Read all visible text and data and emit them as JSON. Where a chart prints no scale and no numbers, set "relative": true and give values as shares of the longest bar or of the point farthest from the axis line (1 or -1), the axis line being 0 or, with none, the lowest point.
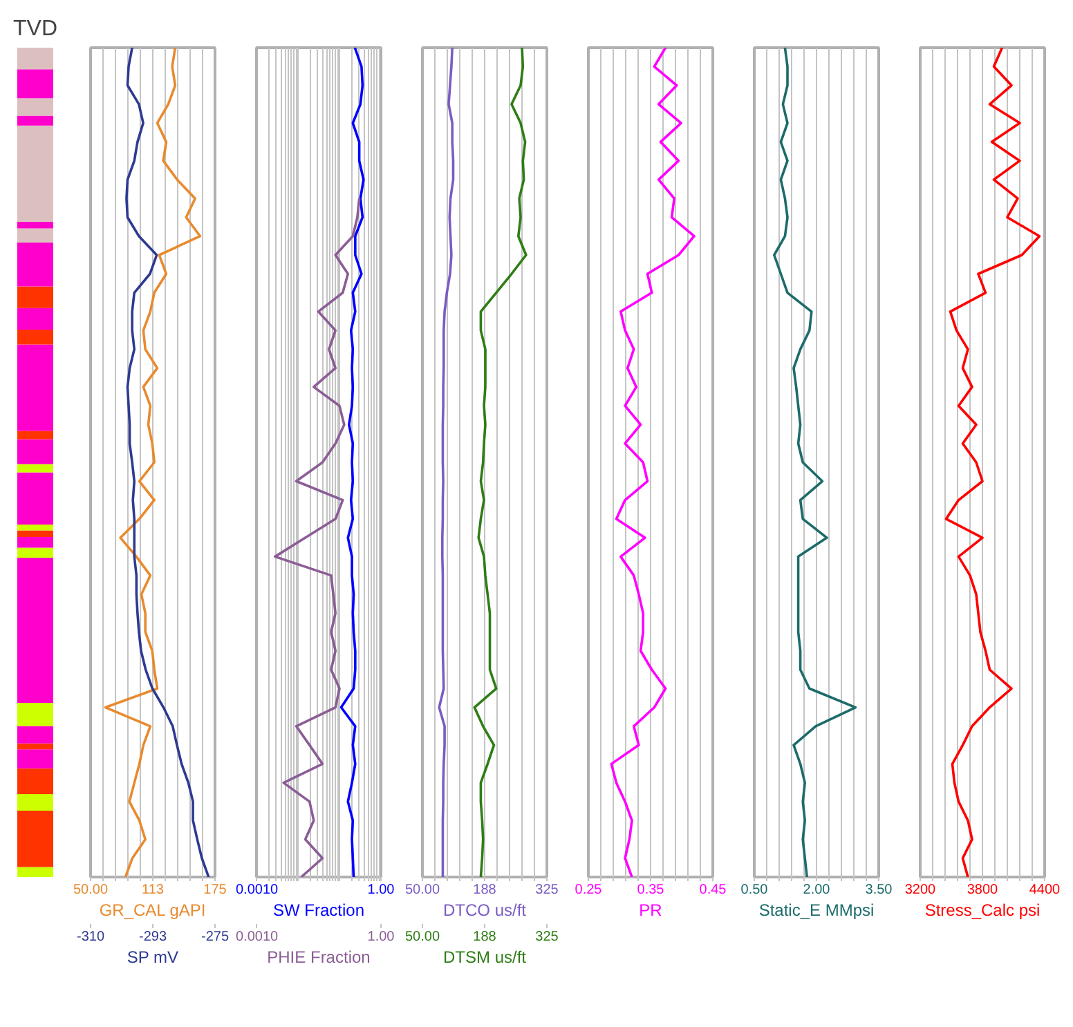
{
  "chart_data": [
    {
      "type": "bar",
      "title": "TVD",
      "stacked": true,
      "relative": true,
      "categories": [
        null
      ],
      "series": [
        {
          "color": "#ccff00",
          "values": [
            0.012
          ]
        },
        {
          "color": "#ff3300",
          "values": [
            0.068
          ]
        },
        {
          "color": "#ccff00",
          "values": [
            0.02
          ]
        },
        {
          "color": "#ff3300",
          "values": [
            0.031
          ]
        },
        {
          "color": "#ff00cc",
          "values": [
            0.023
          ]
        },
        {
          "color": "#ff3300",
          "values": [
            0.007
          ]
        },
        {
          "color": "#ff00cc",
          "values": [
            0.021
          ]
        },
        {
          "color": "#ccff00",
          "values": [
            0.028
          ]
        },
        {
          "color": "#ff00cc",
          "values": [
            0.175
          ]
        },
        {
          "color": "#ccff00",
          "values": [
            0.012
          ]
        },
        {
          "color": "#ff00cc",
          "values": [
            0.013
          ]
        },
        {
          "color": "#ff3300",
          "values": [
            0.008
          ]
        },
        {
          "color": "#ccff00",
          "values": [
            0.007
          ]
        },
        {
          "color": "#ff00cc",
          "values": [
            0.063
          ]
        },
        {
          "color": "#ccff00",
          "values": [
            0.01
          ]
        },
        {
          "color": "#ff00cc",
          "values": [
            0.03
          ]
        },
        {
          "color": "#ff3300",
          "values": [
            0.01
          ]
        },
        {
          "color": "#ff00cc",
          "values": [
            0.104
          ]
        },
        {
          "color": "#ff3300",
          "values": [
            0.018
          ]
        },
        {
          "color": "#ff00cc",
          "values": [
            0.026
          ]
        },
        {
          "color": "#ff3300",
          "values": [
            0.026
          ]
        },
        {
          "color": "#ff00cc",
          "values": [
            0.053
          ]
        },
        {
          "color": "#dcc0c0",
          "values": [
            0.017
          ]
        },
        {
          "color": "#ff00cc",
          "values": [
            0.008
          ]
        },
        {
          "color": "#dcc0c0",
          "values": [
            0.116
          ]
        },
        {
          "color": "#ff00cc",
          "values": [
            0.012
          ]
        },
        {
          "color": "#dcc0c0",
          "values": [
            0.021
          ]
        },
        {
          "color": "#ff00cc",
          "values": [
            0.035
          ]
        },
        {
          "color": "#dcc0c0",
          "values": [
            0.026
          ]
        }
      ]
    },
    {
      "type": "line",
      "orientation": "horizontal",
      "grid": "x",
      "tick_labels": "x",
      "xlabel": "GR_CAL gAPI",
      "x2label": "SP mV",
      "categories": [
        null,
        null,
        null,
        null,
        null,
        null,
        null,
        null,
        null,
        null,
        null,
        null,
        null,
        null,
        null,
        null,
        null,
        null,
        null,
        null,
        null,
        null,
        null,
        null,
        null,
        null,
        null,
        null,
        null,
        null,
        null,
        null,
        null,
        null,
        null,
        null,
        null,
        null,
        null,
        null,
        null,
        null,
        null,
        null,
        null
      ],
      "xlim": [
        50,
        175
      ],
      "xticks": [
        {
          "value": 50,
          "label": "50.00"
        },
        {
          "value": 62.5,
          "label": null
        },
        {
          "value": 75,
          "label": null
        },
        {
          "value": 87.5,
          "label": null
        },
        {
          "value": 100,
          "label": null
        },
        {
          "value": 112.5,
          "label": "113"
        },
        {
          "value": 125,
          "label": null
        },
        {
          "value": 137.5,
          "label": null
        },
        {
          "value": 150,
          "label": null
        },
        {
          "value": 162.5,
          "label": null
        },
        175
      ],
      "x2lim": [
        -310,
        -275
      ],
      "x2ticks": [
        -310,
        {
          "value": -292.5,
          "label": "-293"
        },
        -275
      ],
      "series": [
        {
          "color": "#e88a2e",
          "values": [
            135,
            132,
            135,
            128,
            117,
            126,
            123,
            137,
            155,
            146,
            160,
            119,
            126,
            114,
            110,
            103,
            105,
            117,
            103,
            110,
            108,
            112,
            114,
            99,
            114,
            99,
            80,
            96,
            110,
            101,
            105,
            105,
            112,
            114,
            117,
            65,
            110,
            103,
            99,
            94,
            89,
            99,
            105,
            92,
            85
          ]
        },
        {
          "color": "#2e3a92",
          "axis": "x2",
          "values": [
            -298.3,
            -299.3,
            -299.6,
            -296.4,
            -295.2,
            -296.8,
            -297.7,
            -299.6,
            -299.9,
            -299.6,
            -296.4,
            -291.4,
            -293.3,
            -297.7,
            -298.3,
            -298.3,
            -297.7,
            -299.0,
            -299.6,
            -299.3,
            -299.0,
            -299.0,
            -298.3,
            -297.7,
            -298.1,
            -297.7,
            -297.7,
            -297.7,
            -297.1,
            -297.1,
            -296.8,
            -296.4,
            -295.8,
            -294.5,
            -292.6,
            -289.5,
            -286.9,
            -285.7,
            -284.4,
            -282.5,
            -281.2,
            -281.2,
            -280.0,
            -278.7,
            -276.8
          ]
        }
      ]
    },
    {
      "type": "line",
      "orientation": "horizontal",
      "grid": "x",
      "tick_labels": "x",
      "log": "x",
      "xlabel": "SW Fraction",
      "x2label": "PHIE Fraction",
      "categories": [
        null,
        null,
        null,
        null,
        null,
        null,
        null,
        null,
        null,
        null,
        null,
        null,
        null,
        null,
        null,
        null,
        null,
        null,
        null,
        null,
        null,
        null,
        null,
        null,
        null,
        null,
        null,
        null,
        null,
        null,
        null,
        null,
        null,
        null,
        null,
        null,
        null,
        null,
        null,
        null,
        null,
        null,
        null,
        null,
        null
      ],
      "xlim": [
        0.001,
        1
      ],
      "xticks": [
        {
          "value": 0.001,
          "label": "0.0010"
        },
        {
          "value": 0.002,
          "label": null
        },
        {
          "value": 0.003,
          "label": null
        },
        {
          "value": 0.004,
          "label": null
        },
        {
          "value": 0.005,
          "label": null
        },
        {
          "value": 0.006,
          "label": null
        },
        {
          "value": 0.007,
          "label": null
        },
        {
          "value": 0.008,
          "label": null
        },
        {
          "value": 0.009,
          "label": null
        },
        {
          "value": 0.01,
          "label": null
        },
        {
          "value": 0.02,
          "label": null
        },
        {
          "value": 0.03,
          "label": null
        },
        {
          "value": 0.04,
          "label": null
        },
        {
          "value": 0.05,
          "label": null
        },
        {
          "value": 0.06,
          "label": null
        },
        {
          "value": 0.07,
          "label": null
        },
        {
          "value": 0.08,
          "label": null
        },
        {
          "value": 0.09,
          "label": null
        },
        {
          "value": 0.1,
          "label": null
        },
        {
          "value": 0.2,
          "label": null
        },
        {
          "value": 0.3,
          "label": null
        },
        {
          "value": 0.4,
          "label": null
        },
        {
          "value": 0.5,
          "label": null
        },
        {
          "value": 0.6,
          "label": null
        },
        {
          "value": 0.7,
          "label": null
        },
        {
          "value": 0.8,
          "label": null
        },
        {
          "value": 0.9,
          "label": null
        },
        {
          "value": 1,
          "label": "1.00"
        }
      ],
      "x2lim": [
        0.001,
        1
      ],
      "x2ticks": [
        {
          "value": 0.001,
          "label": "0.0010"
        },
        {
          "value": 1,
          "label": "1.00"
        }
      ],
      "series": [
        {
          "color": "#0000ff",
          "values": [
            0.235,
            0.34,
            0.36,
            0.32,
            0.21,
            0.3,
            0.3,
            0.38,
            0.32,
            0.36,
            0.24,
            0.24,
            0.34,
            0.21,
            0.24,
            0.19,
            0.21,
            0.2,
            0.21,
            0.2,
            0.17,
            0.21,
            0.2,
            0.21,
            0.19,
            0.21,
            0.16,
            0.2,
            0.2,
            0.22,
            0.21,
            0.22,
            0.24,
            0.24,
            0.22,
            0.11,
            0.24,
            0.21,
            0.24,
            0.2,
            0.16,
            0.21,
            0.2,
            0.21,
            0.22
          ]
        },
        {
          "color": "#8b5d95",
          "values": [
            null,
            null,
            null,
            null,
            null,
            null,
            null,
            null,
            0.3,
            0.27,
            0.21,
            0.08,
            0.16,
            0.12,
            0.031,
            0.08,
            0.056,
            0.08,
            0.024,
            0.1,
            0.13,
            0.08,
            0.039,
            0.0091,
            0.12,
            0.08,
            0.015,
            0.0028,
            0.063,
            0.071,
            0.08,
            0.063,
            0.08,
            0.063,
            0.1,
            0.08,
            0.0091,
            0.019,
            0.039,
            0.0045,
            0.019,
            0.024,
            0.015,
            0.039,
            0.012
          ]
        }
      ]
    },
    {
      "type": "line",
      "orientation": "horizontal",
      "grid": "x",
      "tick_labels": "x",
      "xlabel": "DTCO us/ft",
      "x2label": "DTSM us/ft",
      "categories": [
        null,
        null,
        null,
        null,
        null,
        null,
        null,
        null,
        null,
        null,
        null,
        null,
        null,
        null,
        null,
        null,
        null,
        null,
        null,
        null,
        null,
        null,
        null,
        null,
        null,
        null,
        null,
        null,
        null,
        null,
        null,
        null,
        null,
        null,
        null,
        null,
        null,
        null,
        null,
        null,
        null,
        null,
        null,
        null,
        null
      ],
      "xlim": [
        50,
        325
      ],
      "xticks": [
        {
          "value": 50,
          "label": "50.00"
        },
        {
          "value": 77.5,
          "label": null
        },
        {
          "value": 105,
          "label": null
        },
        {
          "value": 132.5,
          "label": null
        },
        {
          "value": 160,
          "label": null
        },
        {
          "value": 187.5,
          "label": "188"
        },
        {
          "value": 215,
          "label": null
        },
        {
          "value": 242.5,
          "label": null
        },
        {
          "value": 270,
          "label": null
        },
        {
          "value": 297.5,
          "label": null
        },
        325
      ],
      "x2lim": [
        50,
        325
      ],
      "x2ticks": [
        {
          "value": 50,
          "label": "50.00"
        },
        {
          "value": 187.5,
          "label": "188"
        },
        325
      ],
      "series": [
        {
          "color": "#7a5cc4",
          "values": [
            116,
            114,
            111,
            108,
            116,
            116,
            118,
            118,
            112,
            110,
            112,
            114,
            111,
            104,
            99,
            97,
            97,
            97,
            96,
            96,
            95,
            95,
            95,
            96,
            95,
            95,
            94,
            94,
            95,
            95,
            95,
            95,
            95,
            96,
            97,
            87,
            99,
            99,
            97,
            96,
            96,
            95,
            95,
            95,
            95
          ]
        },
        {
          "color": "#2e7d15",
          "axis": "x2",
          "values": [
            270,
            272,
            267,
            247,
            267,
            277,
            272,
            274,
            264,
            267,
            262,
            279,
            247,
            213,
            179,
            179,
            189,
            189,
            189,
            186,
            189,
            186,
            184,
            179,
            186,
            179,
            174,
            186,
            189,
            194,
            199,
            199,
            199,
            199,
            213,
            165,
            184,
            208,
            194,
            179,
            179,
            182,
            184,
            182,
            179
          ]
        }
      ]
    },
    {
      "type": "line",
      "orientation": "horizontal",
      "grid": "x",
      "tick_labels": "x",
      "xlabel": "PR",
      "categories": [
        null,
        null,
        null,
        null,
        null,
        null,
        null,
        null,
        null,
        null,
        null,
        null,
        null,
        null,
        null,
        null,
        null,
        null,
        null,
        null,
        null,
        null,
        null,
        null,
        null,
        null,
        null,
        null,
        null,
        null,
        null,
        null,
        null,
        null,
        null,
        null,
        null,
        null,
        null,
        null,
        null,
        null,
        null,
        null,
        null
      ],
      "xlim": [
        0.25,
        0.45
      ],
      "xticks": [
        0.25,
        {
          "value": 0.27,
          "label": null
        },
        {
          "value": 0.29,
          "label": null
        },
        {
          "value": 0.31,
          "label": null
        },
        {
          "value": 0.33,
          "label": null
        },
        0.35,
        {
          "value": 0.37,
          "label": null
        },
        {
          "value": 0.39,
          "label": null
        },
        {
          "value": 0.41,
          "label": null
        },
        {
          "value": 0.43,
          "label": null
        },
        0.45
      ],
      "series": [
        {
          "color": "#ff00ff",
          "values": [
            0.374,
            0.356,
            0.392,
            0.363,
            0.399,
            0.366,
            0.395,
            0.363,
            0.388,
            0.384,
            0.42,
            0.395,
            0.345,
            0.352,
            0.302,
            0.309,
            0.323,
            0.313,
            0.327,
            0.309,
            0.334,
            0.309,
            0.338,
            0.345,
            0.309,
            0.295,
            0.341,
            0.302,
            0.323,
            0.331,
            0.338,
            0.338,
            0.334,
            0.352,
            0.374,
            0.356,
            0.323,
            0.331,
            0.287,
            0.295,
            0.309,
            0.32,
            0.316,
            0.309,
            0.32
          ]
        }
      ]
    },
    {
      "type": "line",
      "orientation": "horizontal",
      "grid": "x",
      "tick_labels": "x",
      "xlabel": "Static_E MMpsi",
      "categories": [
        null,
        null,
        null,
        null,
        null,
        null,
        null,
        null,
        null,
        null,
        null,
        null,
        null,
        null,
        null,
        null,
        null,
        null,
        null,
        null,
        null,
        null,
        null,
        null,
        null,
        null,
        null,
        null,
        null,
        null,
        null,
        null,
        null,
        null,
        null,
        null,
        null,
        null,
        null,
        null,
        null,
        null,
        null,
        null,
        null
      ],
      "xlim": [
        0.5,
        3.5
      ],
      "xticks": [
        {
          "value": 0.5,
          "label": "0.50"
        },
        {
          "value": 0.8,
          "label": null
        },
        {
          "value": 1.1,
          "label": null
        },
        {
          "value": 1.4,
          "label": null
        },
        {
          "value": 1.7,
          "label": null
        },
        {
          "value": 2,
          "label": "2.00"
        },
        {
          "value": 2.3,
          "label": null
        },
        {
          "value": 2.6,
          "label": null
        },
        {
          "value": 2.9,
          "label": null
        },
        {
          "value": 3.2,
          "label": null
        },
        {
          "value": 3.5,
          "label": "3.50"
        }
      ],
      "series": [
        {
          "color": "#1d6b6b",
          "values": [
            1.24,
            1.3,
            1.3,
            1.19,
            1.3,
            1.14,
            1.3,
            1.14,
            1.24,
            1.3,
            1.24,
            0.98,
            1.14,
            1.3,
            1.88,
            1.83,
            1.61,
            1.45,
            1.51,
            1.56,
            1.61,
            1.56,
            1.67,
            2.14,
            1.61,
            1.67,
            2.25,
            1.56,
            1.56,
            1.56,
            1.56,
            1.56,
            1.61,
            1.61,
            1.83,
            2.94,
            1.98,
            1.45,
            1.61,
            1.72,
            1.67,
            1.72,
            1.67,
            1.72,
            1.77
          ]
        }
      ]
    },
    {
      "type": "line",
      "orientation": "horizontal",
      "grid": "x",
      "tick_labels": "x",
      "xlabel": "Stress_Calc psi",
      "categories": [
        null,
        null,
        null,
        null,
        null,
        null,
        null,
        null,
        null,
        null,
        null,
        null,
        null,
        null,
        null,
        null,
        null,
        null,
        null,
        null,
        null,
        null,
        null,
        null,
        null,
        null,
        null,
        null,
        null,
        null,
        null,
        null,
        null,
        null,
        null,
        null,
        null,
        null,
        null,
        null,
        null,
        null,
        null,
        null,
        null
      ],
      "xlim": [
        3200,
        4400
      ],
      "xticks": [
        3200,
        {
          "value": 3320,
          "label": null
        },
        {
          "value": 3440,
          "label": null
        },
        {
          "value": 3560,
          "label": null
        },
        {
          "value": 3680,
          "label": null
        },
        3800,
        {
          "value": 3920,
          "label": null
        },
        {
          "value": 4040,
          "label": null
        },
        {
          "value": 4160,
          "label": null
        },
        {
          "value": 4280,
          "label": null
        },
        4400
      ],
      "series": [
        {
          "color": "#ff0000",
          "values": [
            3990,
            3910,
            4080,
            3870,
            4160,
            3890,
            4160,
            3910,
            4140,
            4040,
            4350,
            4180,
            3760,
            3830,
            3490,
            3550,
            3660,
            3610,
            3700,
            3570,
            3740,
            3610,
            3740,
            3800,
            3570,
            3450,
            3800,
            3570,
            3680,
            3740,
            3760,
            3780,
            3830,
            3870,
            4080,
            3870,
            3700,
            3610,
            3510,
            3530,
            3570,
            3660,
            3700,
            3610,
            3660
          ]
        }
      ]
    }
  ]
}
